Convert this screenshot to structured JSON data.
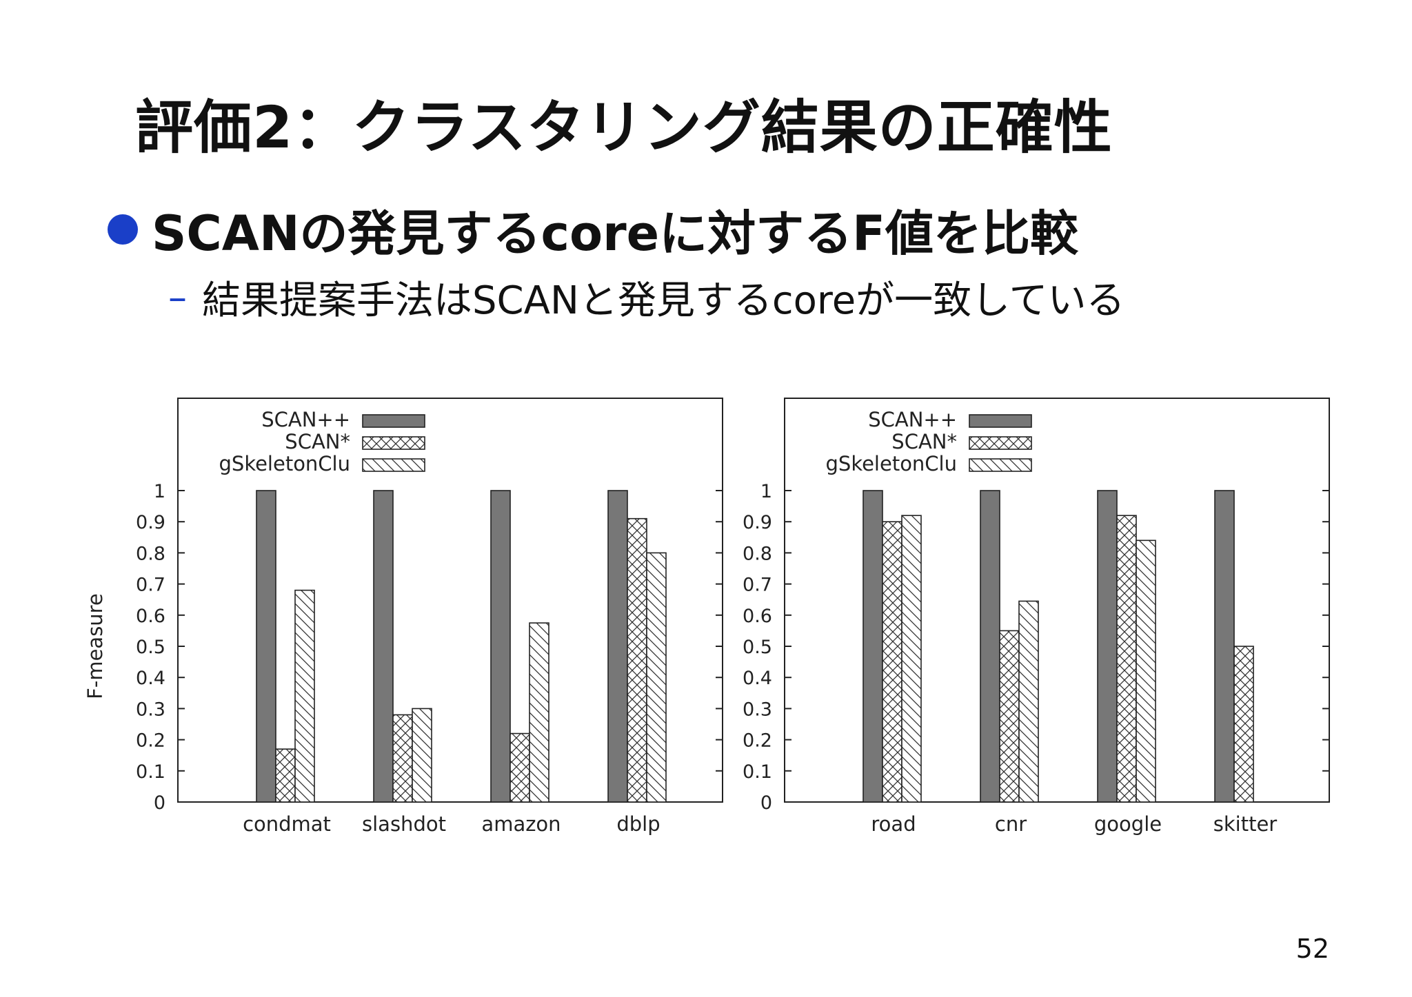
{
  "slide": {
    "title": "評価2：クラスタリング結果の正確性",
    "bullet": "SCANの発見するcoreに対するF値を比較",
    "sub_bullet_marker": "–",
    "sub_bullet": "結果提案手法はSCANと発見するcoreが一致している",
    "page_number": "52"
  },
  "chart_data": [
    {
      "type": "bar",
      "title": "",
      "xlabel": "",
      "ylabel": "F-measure",
      "ylim": [
        0,
        1
      ],
      "yticks": [
        "0",
        "0.1",
        "0.2",
        "0.3",
        "0.4",
        "0.5",
        "0.6",
        "0.7",
        "0.8",
        "0.9",
        "1"
      ],
      "grid": false,
      "legend_position": "top-left",
      "categories": [
        "condmat",
        "slashdot",
        "amazon",
        "dblp"
      ],
      "series": [
        {
          "name": "SCAN++",
          "pattern": "solid",
          "values": [
            1.0,
            1.0,
            1.0,
            1.0
          ]
        },
        {
          "name": "SCAN*",
          "pattern": "crosshatch",
          "values": [
            0.17,
            0.28,
            0.22,
            0.91
          ]
        },
        {
          "name": "gSkeletonClu",
          "pattern": "diagonal",
          "values": [
            0.68,
            0.3,
            0.575,
            0.8
          ]
        }
      ]
    },
    {
      "type": "bar",
      "title": "",
      "xlabel": "",
      "ylabel": "",
      "ylim": [
        0,
        1
      ],
      "yticks": [
        "0",
        "0.1",
        "0.2",
        "0.3",
        "0.4",
        "0.5",
        "0.6",
        "0.7",
        "0.8",
        "0.9",
        "1"
      ],
      "grid": false,
      "legend_position": "top-left",
      "categories": [
        "road",
        "cnr",
        "google",
        "skitter"
      ],
      "series": [
        {
          "name": "SCAN++",
          "pattern": "solid",
          "values": [
            1.0,
            1.0,
            1.0,
            1.0
          ]
        },
        {
          "name": "SCAN*",
          "pattern": "crosshatch",
          "values": [
            0.9,
            0.55,
            0.92,
            0.5
          ]
        },
        {
          "name": "gSkeletonClu",
          "pattern": "diagonal",
          "values": [
            0.92,
            0.645,
            0.84,
            null
          ]
        }
      ]
    }
  ],
  "colors": {
    "bar_solid": "#777777",
    "stroke": "#222222",
    "bullet": "#1a3fc8"
  }
}
